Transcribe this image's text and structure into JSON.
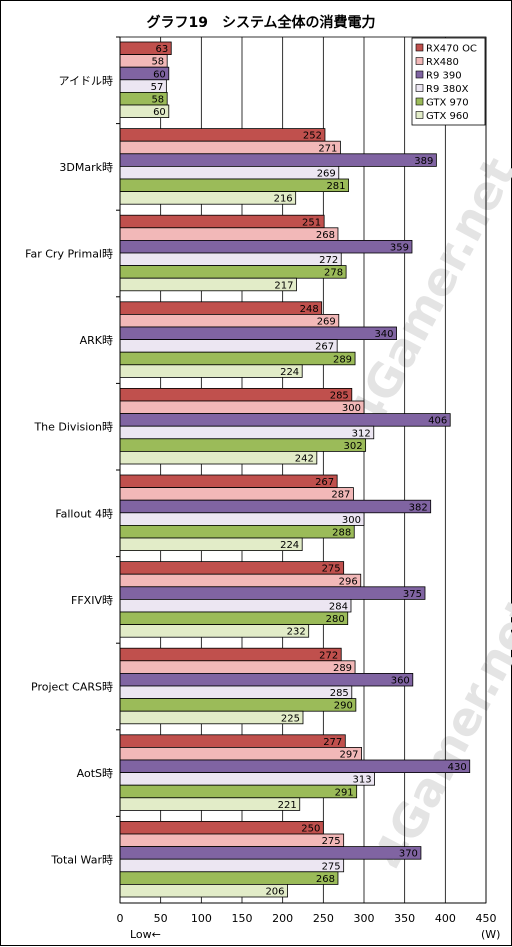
{
  "chart_data": {
    "type": "bar",
    "orientation": "horizontal",
    "title": "グラフ19　システム全体の消費電力",
    "categories": [
      "アイドル時",
      "3DMark時",
      "Far Cry Primal時",
      "ARK時",
      "The Division時",
      "Fallout 4時",
      "FFXIV時",
      "Project CARS時",
      "AotS時",
      "Total War時"
    ],
    "series": [
      {
        "name": "RX470 OC",
        "color": "#c0504d",
        "values": [
          63,
          252,
          251,
          248,
          285,
          267,
          275,
          272,
          277,
          250
        ]
      },
      {
        "name": "RX480",
        "color": "#f2b8b8",
        "values": [
          58,
          271,
          268,
          269,
          300,
          287,
          296,
          289,
          297,
          275
        ]
      },
      {
        "name": "R9 390",
        "color": "#8064a2",
        "values": [
          60,
          389,
          359,
          340,
          406,
          382,
          375,
          360,
          430,
          370
        ]
      },
      {
        "name": "R9 380X",
        "color": "#ece6f2",
        "values": [
          57,
          269,
          272,
          267,
          312,
          300,
          284,
          285,
          313,
          275
        ]
      },
      {
        "name": "GTX 970",
        "color": "#9bbb59",
        "values": [
          58,
          281,
          278,
          289,
          302,
          288,
          280,
          290,
          291,
          268
        ]
      },
      {
        "name": "GTX 960",
        "color": "#e2ecc8",
        "values": [
          60,
          216,
          217,
          224,
          242,
          224,
          232,
          225,
          221,
          206
        ]
      }
    ],
    "xlim": [
      0,
      450
    ],
    "xticks": [
      0,
      50,
      100,
      150,
      200,
      250,
      300,
      350,
      400,
      450
    ],
    "xlabel_left": "Low←",
    "xlabel_right": "(W)",
    "grid": true,
    "legend": "top-right",
    "watermark": "4Gamer.net"
  }
}
